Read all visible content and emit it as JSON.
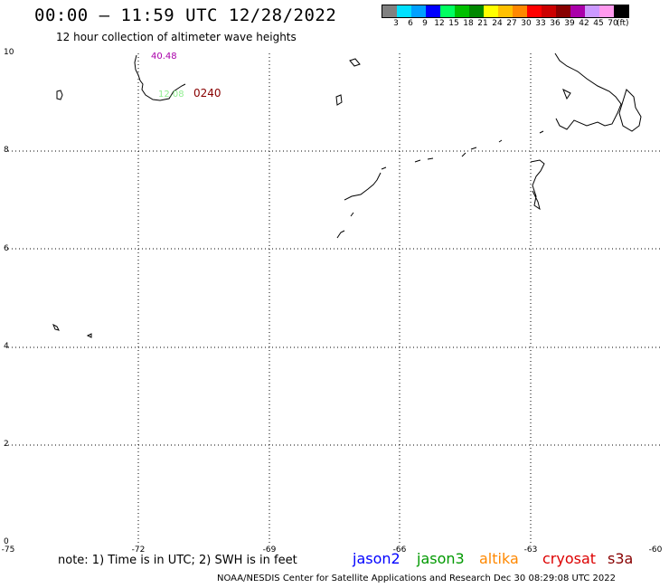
{
  "header": {
    "title": "00:00 — 11:59 UTC 12/28/2022",
    "subtitle": "12 hour collection of altimeter wave heights"
  },
  "legend": {
    "colors": [
      "#808080",
      "#00e0ff",
      "#00a0ff",
      "#0000ff",
      "#00ff60",
      "#00c000",
      "#008800",
      "#ffff00",
      "#ffc000",
      "#ff8800",
      "#ff0000",
      "#cc0000",
      "#880000",
      "#aa00aa",
      "#cc99ff",
      "#ff99ee",
      "#000000"
    ],
    "labels": [
      "3",
      "6",
      "9",
      "12",
      "15",
      "18",
      "21",
      "24",
      "27",
      "30",
      "33",
      "36",
      "39",
      "42",
      "45",
      "70"
    ],
    "unit": "(ft)"
  },
  "map": {
    "y_axis": {
      "min": 0,
      "max": 10,
      "ticks": [
        "10",
        "8",
        "6",
        "4",
        "2",
        "0"
      ]
    },
    "x_axis": {
      "min": -75,
      "max": -60,
      "ticks": [
        "-75",
        "-72",
        "-69",
        "-66",
        "-63",
        "-60"
      ]
    },
    "annotations": [
      {
        "text": "40.48",
        "color": "#aa00aa"
      },
      {
        "text": "12.08",
        "color": "#90ee90"
      },
      {
        "text": "0240",
        "color": "#880000"
      }
    ]
  },
  "footer": {
    "note": "note: 1) Time is in UTC; 2) SWH is in feet",
    "satellites": [
      {
        "name": "jason2",
        "color": "#0000ff"
      },
      {
        "name": "jason3",
        "color": "#009900"
      },
      {
        "name": "altika",
        "color": "#ff8800"
      },
      {
        "name": "cryosat",
        "color": "#dd0000"
      },
      {
        "name": "s3a",
        "color": "#880000"
      }
    ],
    "credit": "NOAA/NESDIS Center for Satellite Applications and Research   Dec 30 08:29:08 UTC 2022"
  }
}
